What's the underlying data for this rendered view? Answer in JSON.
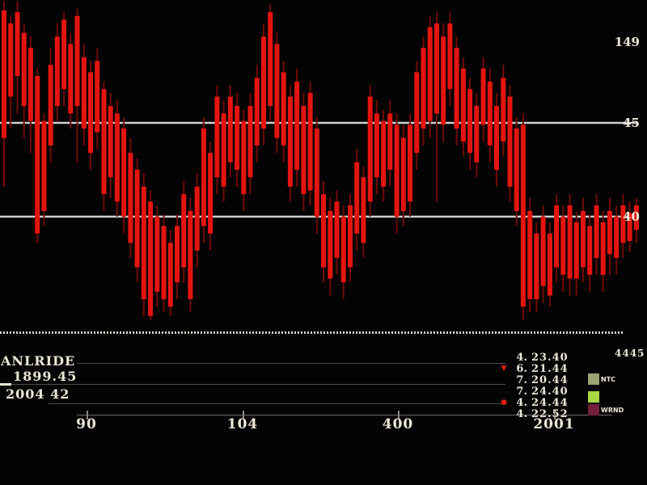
{
  "chart_data": {
    "type": "candlestick",
    "title": "",
    "background": "#030303",
    "candle_color": "#e41410",
    "wick_color": "#6f0a05",
    "level_line_color": "#cfcfcf",
    "ylim": [
      34.3,
      51.6
    ],
    "grid": false,
    "hlines": [
      {
        "price": 45,
        "label": "45"
      },
      {
        "price": 40,
        "label": "40"
      }
    ],
    "right_labels": [
      {
        "label": "149",
        "price": 49.3
      },
      {
        "label": "45",
        "price": 45
      },
      {
        "label": "40",
        "price": 40
      }
    ],
    "x_ticks": [
      {
        "label": "90",
        "x": 0.134
      },
      {
        "label": "104",
        "x": 0.375
      },
      {
        "label": "400",
        "x": 0.615
      },
      {
        "label": "2001",
        "x": 0.856
      }
    ],
    "candles": [
      [
        51.0,
        51.5,
        41.6,
        44.2
      ],
      [
        50.3,
        50.7,
        44.7,
        46.4
      ],
      [
        50.9,
        51.5,
        45.5,
        47.5
      ],
      [
        49.8,
        50.3,
        44.2,
        45.9
      ],
      [
        49.0,
        49.6,
        43.4,
        45.1
      ],
      [
        47.5,
        47.9,
        38.6,
        39.1
      ],
      [
        45.1,
        45.5,
        39.5,
        40.3
      ],
      [
        48.1,
        49.0,
        42.9,
        43.8
      ],
      [
        49.6,
        50.3,
        45.1,
        45.9
      ],
      [
        50.5,
        50.9,
        45.9,
        46.8
      ],
      [
        49.2,
        49.8,
        44.7,
        45.5
      ],
      [
        50.7,
        51.1,
        42.9,
        45.9
      ],
      [
        48.5,
        49.2,
        43.8,
        44.7
      ],
      [
        47.7,
        48.3,
        42.5,
        43.4
      ],
      [
        48.3,
        49.0,
        43.6,
        44.5
      ],
      [
        46.8,
        47.2,
        40.3,
        41.2
      ],
      [
        45.9,
        46.6,
        41.0,
        42.1
      ],
      [
        45.5,
        46.2,
        40.0,
        40.8
      ],
      [
        44.7,
        45.3,
        39.1,
        40.0
      ],
      [
        43.4,
        44.2,
        37.8,
        38.6
      ],
      [
        42.5,
        43.1,
        36.5,
        37.3
      ],
      [
        41.6,
        42.3,
        34.7,
        35.6
      ],
      [
        40.8,
        41.4,
        34.5,
        34.7
      ],
      [
        40.0,
        40.6,
        35.2,
        36.0
      ],
      [
        39.5,
        40.1,
        34.9,
        35.6
      ],
      [
        38.6,
        39.3,
        34.7,
        35.2
      ],
      [
        39.5,
        40.1,
        35.6,
        36.5
      ],
      [
        41.2,
        41.9,
        36.5,
        37.3
      ],
      [
        40.3,
        41.0,
        34.9,
        35.6
      ],
      [
        41.6,
        42.3,
        37.3,
        38.2
      ],
      [
        44.7,
        45.3,
        38.6,
        39.5
      ],
      [
        43.4,
        44.0,
        38.2,
        39.1
      ],
      [
        46.4,
        47.0,
        41.2,
        42.1
      ],
      [
        45.5,
        46.2,
        40.8,
        41.6
      ],
      [
        46.4,
        47.0,
        42.1,
        42.9
      ],
      [
        45.9,
        46.6,
        41.6,
        42.5
      ],
      [
        45.1,
        45.7,
        40.3,
        41.2
      ],
      [
        45.9,
        46.6,
        41.2,
        42.1
      ],
      [
        47.4,
        48.1,
        42.9,
        43.8
      ],
      [
        49.6,
        50.3,
        43.8,
        44.7
      ],
      [
        50.9,
        51.3,
        45.1,
        45.9
      ],
      [
        49.2,
        49.8,
        43.4,
        44.2
      ],
      [
        47.7,
        48.3,
        42.9,
        43.8
      ],
      [
        46.4,
        47.0,
        40.8,
        41.6
      ],
      [
        47.2,
        47.9,
        41.6,
        42.5
      ],
      [
        45.9,
        46.6,
        40.3,
        41.2
      ],
      [
        46.6,
        47.2,
        40.6,
        41.4
      ],
      [
        44.7,
        45.3,
        39.1,
        40.0
      ],
      [
        41.2,
        41.9,
        36.5,
        37.3
      ],
      [
        40.3,
        41.0,
        35.8,
        36.7
      ],
      [
        40.8,
        41.4,
        36.9,
        37.8
      ],
      [
        40.0,
        40.6,
        35.6,
        36.5
      ],
      [
        40.6,
        41.2,
        36.5,
        37.3
      ],
      [
        42.9,
        43.6,
        38.2,
        39.1
      ],
      [
        42.1,
        42.7,
        37.8,
        38.6
      ],
      [
        46.4,
        47.0,
        40.0,
        40.8
      ],
      [
        45.5,
        46.2,
        41.2,
        42.1
      ],
      [
        45.1,
        45.7,
        40.8,
        41.6
      ],
      [
        45.5,
        46.2,
        41.6,
        42.5
      ],
      [
        44.9,
        45.5,
        39.1,
        40.0
      ],
      [
        44.2,
        44.9,
        39.5,
        40.3
      ],
      [
        44.9,
        45.5,
        40.0,
        40.8
      ],
      [
        47.7,
        48.3,
        42.5,
        43.4
      ],
      [
        49.0,
        49.6,
        43.8,
        44.7
      ],
      [
        50.1,
        50.7,
        44.2,
        45.1
      ],
      [
        50.3,
        50.9,
        40.8,
        45.5
      ],
      [
        49.6,
        50.3,
        44.0,
        44.9
      ],
      [
        50.3,
        50.9,
        45.9,
        46.8
      ],
      [
        49.0,
        49.6,
        43.8,
        44.7
      ],
      [
        47.9,
        48.5,
        43.2,
        44.0
      ],
      [
        46.8,
        47.4,
        42.5,
        43.4
      ],
      [
        45.9,
        46.6,
        42.1,
        42.9
      ],
      [
        47.9,
        48.5,
        44.0,
        44.9
      ],
      [
        47.2,
        47.9,
        42.9,
        43.8
      ],
      [
        45.9,
        46.6,
        41.6,
        42.5
      ],
      [
        47.4,
        48.1,
        43.2,
        44.0
      ],
      [
        46.4,
        47.0,
        40.8,
        41.6
      ],
      [
        44.7,
        45.3,
        39.5,
        40.3
      ],
      [
        44.9,
        45.5,
        34.5,
        35.2
      ],
      [
        40.3,
        41.0,
        34.9,
        35.6
      ],
      [
        39.1,
        39.7,
        34.9,
        35.6
      ],
      [
        40.0,
        40.6,
        35.4,
        36.3
      ],
      [
        39.1,
        39.7,
        35.2,
        35.8
      ],
      [
        40.6,
        41.2,
        36.5,
        37.3
      ],
      [
        40.0,
        40.6,
        36.0,
        36.9
      ],
      [
        40.6,
        41.2,
        35.8,
        36.7
      ],
      [
        39.7,
        40.3,
        35.8,
        36.7
      ],
      [
        40.3,
        41.0,
        36.5,
        37.3
      ],
      [
        39.5,
        40.1,
        36.0,
        36.9
      ],
      [
        40.6,
        41.2,
        36.9,
        37.8
      ],
      [
        39.7,
        40.3,
        36.0,
        36.9
      ],
      [
        40.3,
        41.0,
        36.9,
        38.0
      ],
      [
        40.0,
        40.6,
        36.9,
        37.8
      ],
      [
        40.6,
        41.2,
        37.8,
        38.6
      ],
      [
        40.2,
        40.8,
        38.1,
        38.7
      ],
      [
        40.6,
        41.0,
        38.6,
        39.3
      ]
    ]
  },
  "footer": {
    "instrument": "ANLRIDE",
    "line2": "1899.45",
    "line3": "2004 42",
    "corner_value": "4445",
    "readout_rows": [
      {
        "marker": "",
        "n": "4.",
        "v": "23.40"
      },
      {
        "marker": "▼",
        "n": "6.",
        "v": "21.44"
      },
      {
        "marker": "",
        "n": "7.",
        "v": "20.44"
      },
      {
        "marker": "",
        "n": "7.",
        "v": "24.40"
      },
      {
        "marker": "●",
        "n": "4.",
        "v": "24.44"
      },
      {
        "marker": "",
        "n": "4.",
        "v": "22.52"
      }
    ],
    "legend": [
      {
        "label": "NTC",
        "color": "#9aa470"
      },
      {
        "label": "",
        "color": "#a8d944"
      },
      {
        "label": "WRND",
        "color": "#70203c"
      }
    ]
  }
}
